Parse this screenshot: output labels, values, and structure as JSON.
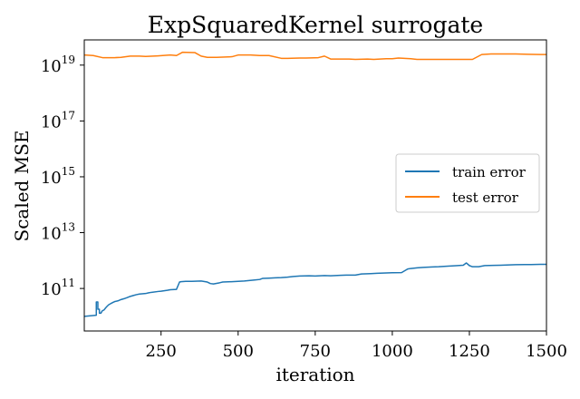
{
  "chart_data": {
    "type": "line",
    "title": "ExpSquaredKernel surrogate",
    "xlabel": "iteration",
    "ylabel": "Scaled MSE",
    "xlim": [
      1,
      1500
    ],
    "ylim": [
      3000000000.0,
      8e+19
    ],
    "yscale": "log",
    "xticks": [
      250,
      500,
      750,
      1000,
      1250,
      1500
    ],
    "yticks": [
      {
        "value": 100000000000.0,
        "base": "10",
        "exp": "11"
      },
      {
        "value": 10000000000000.0,
        "base": "10",
        "exp": "13"
      },
      {
        "value": 1000000000000000.0,
        "base": "10",
        "exp": "15"
      },
      {
        "value": 1e+17,
        "base": "10",
        "exp": "17"
      },
      {
        "value": 1e+19,
        "base": "10",
        "exp": "19"
      }
    ],
    "grid": false,
    "legend_position": "center-right",
    "series": [
      {
        "name": "train error",
        "color": "#1f77b4",
        "x": [
          1,
          40,
          40,
          45,
          45,
          50,
          50,
          55,
          58,
          60,
          65,
          70,
          75,
          80,
          85,
          90,
          95,
          100,
          110,
          120,
          130,
          140,
          150,
          160,
          170,
          180,
          200,
          210,
          220,
          240,
          250,
          260,
          270,
          280,
          300,
          310,
          315,
          330,
          350,
          380,
          400,
          410,
          420,
          440,
          450,
          480,
          500,
          520,
          550,
          570,
          580,
          600,
          620,
          640,
          660,
          680,
          700,
          730,
          750,
          780,
          800,
          830,
          850,
          880,
          900,
          930,
          950,
          980,
          1000,
          1030,
          1050,
          1060,
          1080,
          1100,
          1130,
          1150,
          1180,
          1200,
          1230,
          1240,
          1250,
          1260,
          1280,
          1300,
          1330,
          1350,
          1380,
          1400,
          1430,
          1450,
          1480,
          1500
        ],
        "y": [
          10000000000.0,
          11000000000.0,
          33000000000.0,
          33000000000.0,
          18000000000.0,
          18000000000.0,
          13000000000.0,
          13000000000.0,
          15000000000.0,
          16000000000.0,
          17000000000.0,
          20000000000.0,
          23000000000.0,
          26000000000.0,
          28000000000.0,
          30000000000.0,
          32000000000.0,
          34000000000.0,
          36000000000.0,
          40000000000.0,
          43000000000.0,
          47000000000.0,
          52000000000.0,
          56000000000.0,
          60000000000.0,
          63000000000.0,
          66000000000.0,
          70000000000.0,
          73000000000.0,
          78000000000.0,
          80000000000.0,
          83000000000.0,
          86000000000.0,
          90000000000.0,
          93000000000.0,
          170000000000.0,
          175000000000.0,
          180000000000.0,
          180000000000.0,
          185000000000.0,
          170000000000.0,
          150000000000.0,
          145000000000.0,
          160000000000.0,
          170000000000.0,
          175000000000.0,
          180000000000.0,
          185000000000.0,
          200000000000.0,
          210000000000.0,
          230000000000.0,
          235000000000.0,
          240000000000.0,
          245000000000.0,
          255000000000.0,
          270000000000.0,
          280000000000.0,
          285000000000.0,
          280000000000.0,
          290000000000.0,
          285000000000.0,
          295000000000.0,
          300000000000.0,
          300000000000.0,
          330000000000.0,
          340000000000.0,
          350000000000.0,
          360000000000.0,
          365000000000.0,
          370000000000.0,
          500000000000.0,
          520000000000.0,
          550000000000.0,
          570000000000.0,
          590000000000.0,
          600000000000.0,
          630000000000.0,
          650000000000.0,
          680000000000.0,
          820000000000.0,
          660000000000.0,
          600000000000.0,
          600000000000.0,
          660000000000.0,
          670000000000.0,
          680000000000.0,
          700000000000.0,
          710000000000.0,
          720000000000.0,
          720000000000.0,
          730000000000.0,
          730000000000.0
        ]
      },
      {
        "name": "test error",
        "color": "#ff7f0e",
        "x": [
          1,
          30,
          60,
          100,
          120,
          150,
          180,
          200,
          240,
          280,
          300,
          320,
          360,
          380,
          400,
          430,
          480,
          500,
          540,
          570,
          600,
          640,
          660,
          700,
          720,
          760,
          780,
          800,
          820,
          860,
          880,
          920,
          940,
          980,
          1000,
          1020,
          1060,
          1080,
          1120,
          1160,
          1200,
          1240,
          1260,
          1290,
          1320,
          1360,
          1400,
          1440,
          1480,
          1500
        ],
        "y": [
          2.3e+19,
          2.2e+19,
          1.85e+19,
          1.85e+19,
          1.9e+19,
          2.1e+19,
          2.1e+19,
          2.05e+19,
          2.15e+19,
          2.3e+19,
          2.2e+19,
          2.9e+19,
          2.8e+19,
          2.1e+19,
          1.9e+19,
          1.9e+19,
          2e+19,
          2.3e+19,
          2.3e+19,
          2.2e+19,
          2.2e+19,
          1.75e+19,
          1.75e+19,
          1.8e+19,
          1.8e+19,
          1.85e+19,
          2.1e+19,
          1.65e+19,
          1.65e+19,
          1.65e+19,
          1.6e+19,
          1.65e+19,
          1.6e+19,
          1.7e+19,
          1.7e+19,
          1.8e+19,
          1.7e+19,
          1.6e+19,
          1.6e+19,
          1.6e+19,
          1.6e+19,
          1.6e+19,
          1.6e+19,
          2.4e+19,
          2.5e+19,
          2.5e+19,
          2.5e+19,
          2.45e+19,
          2.4e+19,
          2.4e+19
        ]
      }
    ]
  }
}
